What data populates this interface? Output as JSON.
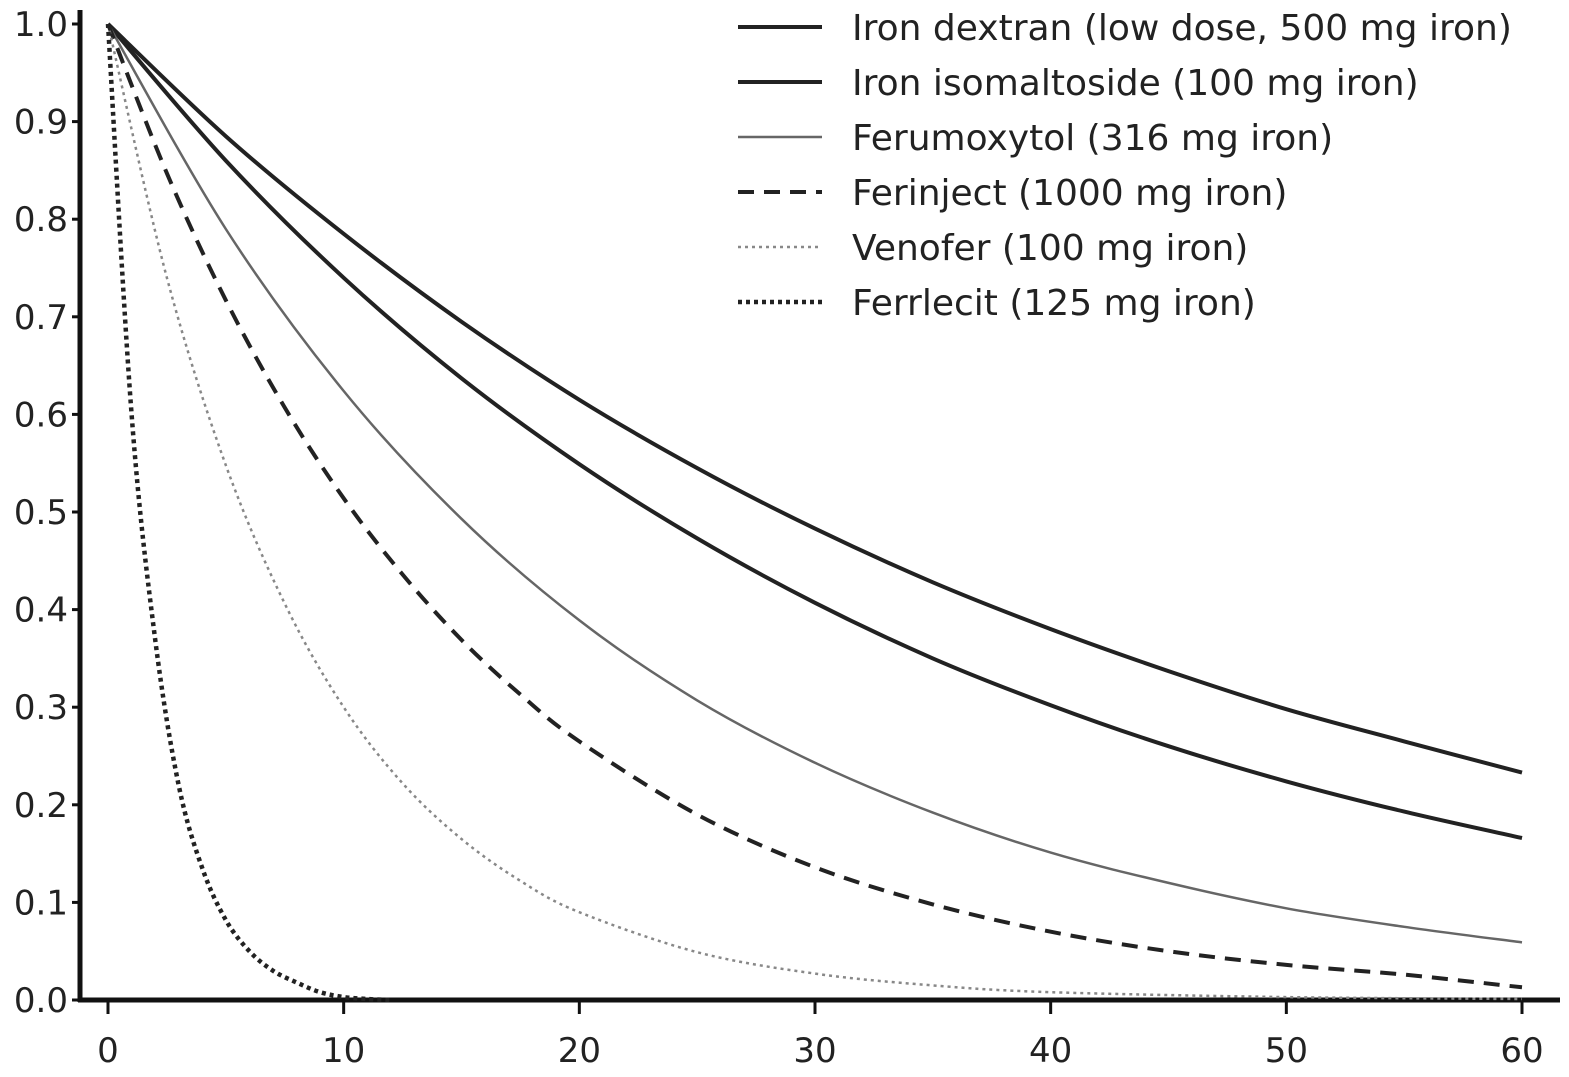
{
  "chart_data": {
    "type": "line",
    "title": "",
    "xlabel": "",
    "ylabel": "",
    "xlim": [
      0,
      60
    ],
    "ylim": [
      0,
      1.0
    ],
    "xticks": [
      0,
      10,
      20,
      30,
      40,
      50,
      60
    ],
    "xtick_labels": [
      "0",
      "10",
      "20",
      "30",
      "40",
      "50",
      "60"
    ],
    "yticks": [
      0,
      0.1,
      0.2,
      0.3,
      0.4,
      0.5,
      0.6,
      0.7,
      0.8,
      0.9,
      1.0
    ],
    "ytick_labels": [
      "0.0",
      "0.1",
      "0.2",
      "0.3",
      "0.4",
      "0.5",
      "0.6",
      "0.7",
      "0.8",
      "0.9",
      "1.0"
    ],
    "grid": false,
    "legend_position": "top-right",
    "series": [
      {
        "name": "Iron dextran (low dose, 500 mg iron)",
        "style": "solid",
        "color": "#222222",
        "x": [
          0,
          5,
          10,
          15,
          20,
          25,
          30,
          35,
          40,
          45,
          50,
          55,
          60
        ],
        "y": [
          1.0,
          0.885,
          0.785,
          0.695,
          0.615,
          0.545,
          0.483,
          0.428,
          0.38,
          0.337,
          0.298,
          0.265,
          0.233
        ]
      },
      {
        "name": "Iron isomaltoside (100 mg iron)",
        "style": "solid",
        "color": "#222222",
        "x": [
          0,
          5,
          10,
          15,
          20,
          25,
          30,
          35,
          40,
          45,
          50,
          55,
          60
        ],
        "y": [
          1.0,
          0.86,
          0.74,
          0.637,
          0.549,
          0.473,
          0.407,
          0.35,
          0.302,
          0.26,
          0.224,
          0.193,
          0.166
        ]
      },
      {
        "name": "Ferumoxytol (316 mg iron)",
        "style": "solid",
        "color": "#666666",
        "x": [
          0,
          5,
          10,
          15,
          20,
          25,
          30,
          35,
          40,
          45,
          50,
          55,
          60
        ],
        "y": [
          1.0,
          0.79,
          0.624,
          0.493,
          0.389,
          0.307,
          0.243,
          0.192,
          0.151,
          0.12,
          0.094,
          0.075,
          0.059
        ]
      },
      {
        "name": "Ferinject (1000 mg iron)",
        "style": "dashed",
        "color": "#222222",
        "x": [
          0,
          2.5,
          5,
          7.5,
          10,
          12.5,
          15,
          17.5,
          20,
          25,
          30,
          35,
          40,
          45,
          50,
          55,
          60
        ],
        "y": [
          1.0,
          0.847,
          0.717,
          0.607,
          0.514,
          0.436,
          0.369,
          0.313,
          0.265,
          0.19,
          0.136,
          0.098,
          0.07,
          0.05,
          0.036,
          0.026,
          0.013
        ]
      },
      {
        "name": "Venofer (100 mg iron)",
        "style": "dotted-light",
        "color": "#888888",
        "x": [
          0,
          2.5,
          5,
          7.5,
          10,
          12.5,
          15,
          17.5,
          20,
          25,
          30,
          35,
          40,
          50,
          60
        ],
        "y": [
          1.0,
          0.74,
          0.548,
          0.406,
          0.3,
          0.222,
          0.165,
          0.122,
          0.09,
          0.049,
          0.027,
          0.015,
          0.008,
          0.003,
          0.001
        ]
      },
      {
        "name": "Ferrlecit (125 mg iron)",
        "style": "dotted",
        "color": "#222222",
        "x": [
          0,
          1,
          2,
          3,
          4,
          5,
          6,
          7,
          8,
          9,
          10,
          11,
          12
        ],
        "y": [
          1.0,
          0.6,
          0.37,
          0.22,
          0.135,
          0.082,
          0.05,
          0.03,
          0.018,
          0.008,
          0.003,
          0.001,
          0.0
        ]
      }
    ]
  }
}
